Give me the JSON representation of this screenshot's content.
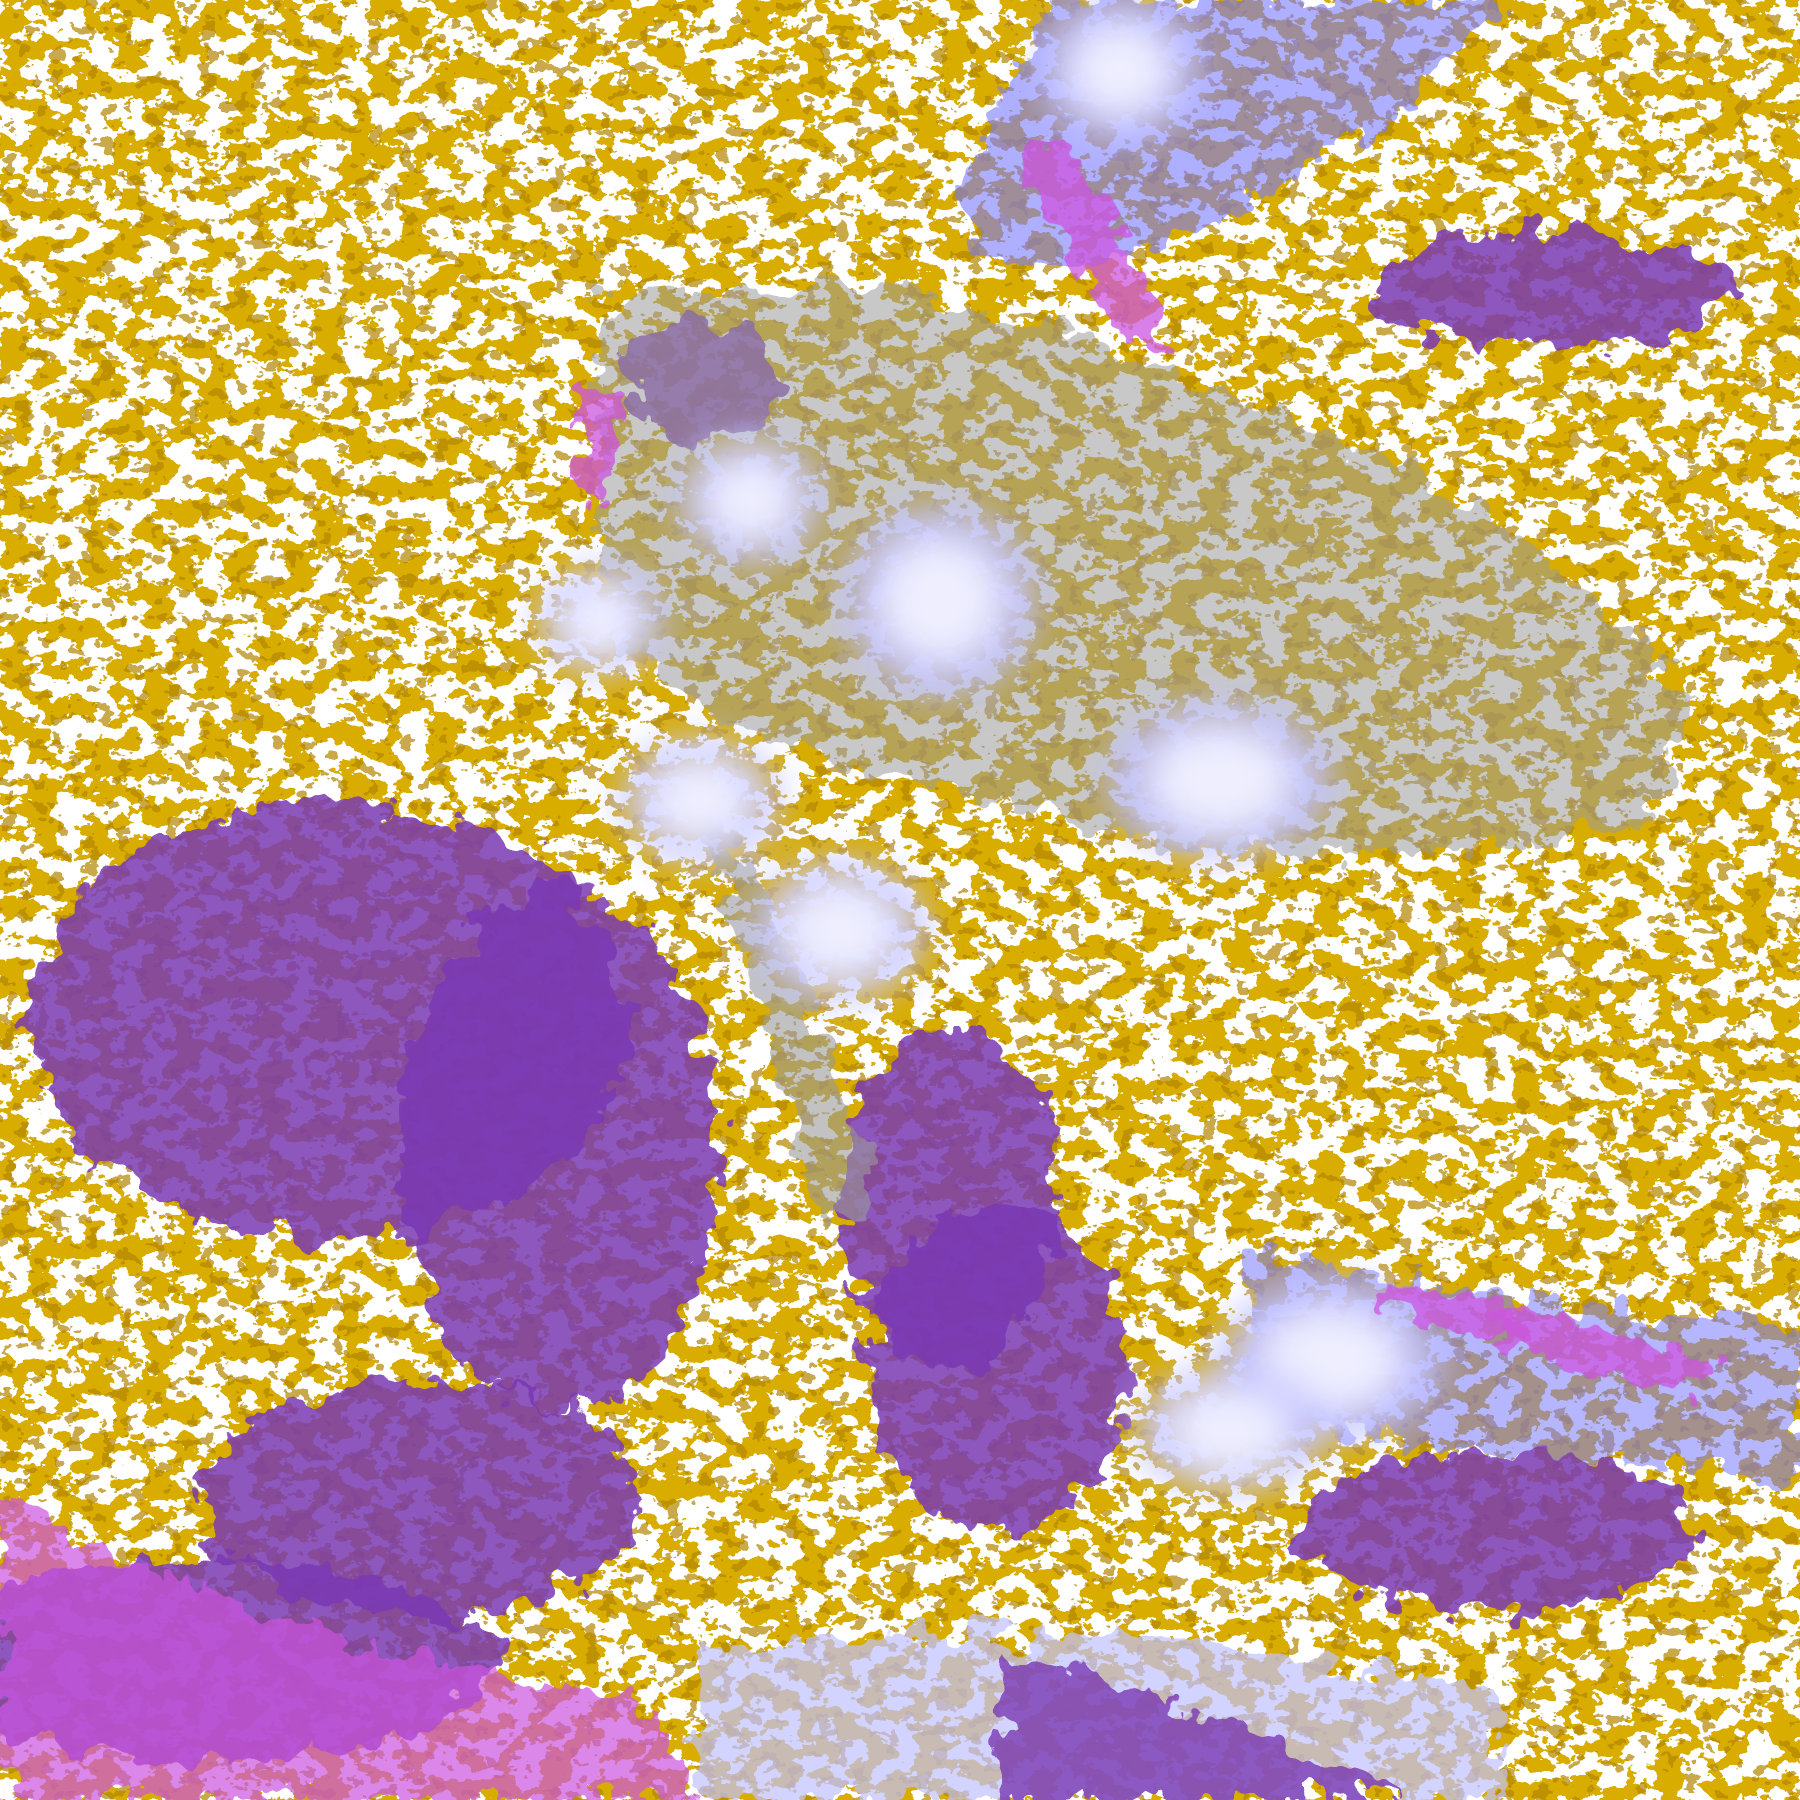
{
  "palette": {
    "clear": "#ffffff",
    "gold": "#d8ad00",
    "gold_dark": "#b48600",
    "purple": "#7a38b2",
    "magenta": "#cc55e0",
    "blue": "#7a7aff",
    "lavender": "#c0c0ff",
    "pale": "#eeeeff",
    "gray": "#9a9a9a"
  }
}
